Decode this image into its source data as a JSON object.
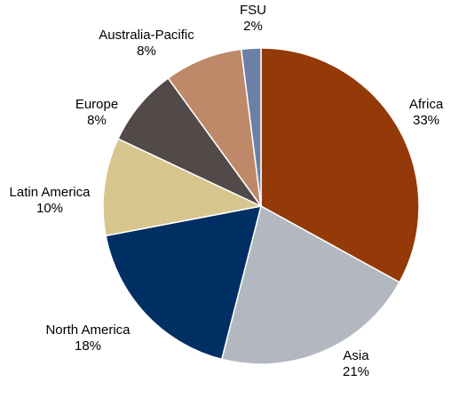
{
  "chart_data": {
    "type": "pie",
    "title": "",
    "start_angle_deg": 0,
    "direction": "clockwise",
    "colors_by_slice": true,
    "slices": [
      {
        "name": "Africa",
        "value": 33,
        "value_label": "33%",
        "color": "#933A08"
      },
      {
        "name": "Asia",
        "value": 21,
        "value_label": "21%",
        "color": "#B3B8C0"
      },
      {
        "name": "North America",
        "value": 18,
        "value_label": "18%",
        "color": "#003063"
      },
      {
        "name": "Latin America",
        "value": 10,
        "value_label": "10%",
        "color": "#D7C58E"
      },
      {
        "name": "Europe",
        "value": 8,
        "value_label": "8%",
        "color": "#524A48"
      },
      {
        "name": "Australia-Pacific",
        "value": 8,
        "value_label": "8%",
        "color": "#BE8969"
      },
      {
        "name": "FSU",
        "value": 2,
        "value_label": "2%",
        "color": "#6C80A6"
      }
    ]
  }
}
